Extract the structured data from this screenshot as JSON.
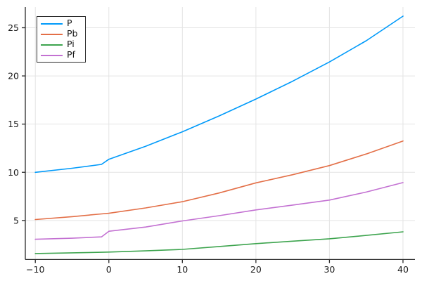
{
  "chart_data": {
    "type": "line",
    "title": "",
    "xlabel": "",
    "ylabel": "",
    "x": [
      -10,
      -5,
      -1,
      0,
      5,
      10,
      15,
      20,
      25,
      30,
      35,
      40
    ],
    "series": [
      {
        "name": "P",
        "color": "#009AFA",
        "values": [
          10.0,
          10.42,
          10.82,
          11.35,
          12.7,
          14.2,
          15.85,
          17.6,
          19.45,
          21.45,
          23.65,
          26.2
        ]
      },
      {
        "name": "Pb",
        "color": "#E36F47",
        "values": [
          5.1,
          5.4,
          5.68,
          5.75,
          6.3,
          6.95,
          7.85,
          8.9,
          9.75,
          10.7,
          11.9,
          13.25
        ]
      },
      {
        "name": "Pi",
        "color": "#3DA44E",
        "values": [
          1.57,
          1.64,
          1.7,
          1.72,
          1.85,
          2.0,
          2.3,
          2.6,
          2.85,
          3.1,
          3.45,
          3.82
        ]
      },
      {
        "name": "Pf",
        "color": "#C371D2",
        "values": [
          3.05,
          3.16,
          3.3,
          3.88,
          4.32,
          4.95,
          5.5,
          6.1,
          6.6,
          7.12,
          7.95,
          8.93
        ]
      }
    ],
    "xlim": [
      -11.36,
      41.63
    ],
    "ylim": [
      0.95,
      27.15
    ],
    "xticks": {
      "values": [
        -10,
        0,
        10,
        20,
        30,
        40
      ],
      "labels": [
        "−10",
        "0",
        "10",
        "20",
        "30",
        "40"
      ]
    },
    "yticks": {
      "values": [
        5,
        10,
        15,
        20,
        25
      ],
      "labels": [
        "5",
        "10",
        "15",
        "20",
        "25"
      ]
    },
    "grid": true,
    "legend_position": "top-left",
    "style": {
      "background": "#FFFFFF",
      "grid_color": "#E4E4E4",
      "spine_color": "#2A2A2A",
      "tick_color": "#2A2A2A",
      "tick_label_color": "#1A1A1A",
      "legend_border_color": "#2A2A2A",
      "legend_background": "#FFFFFF"
    }
  }
}
